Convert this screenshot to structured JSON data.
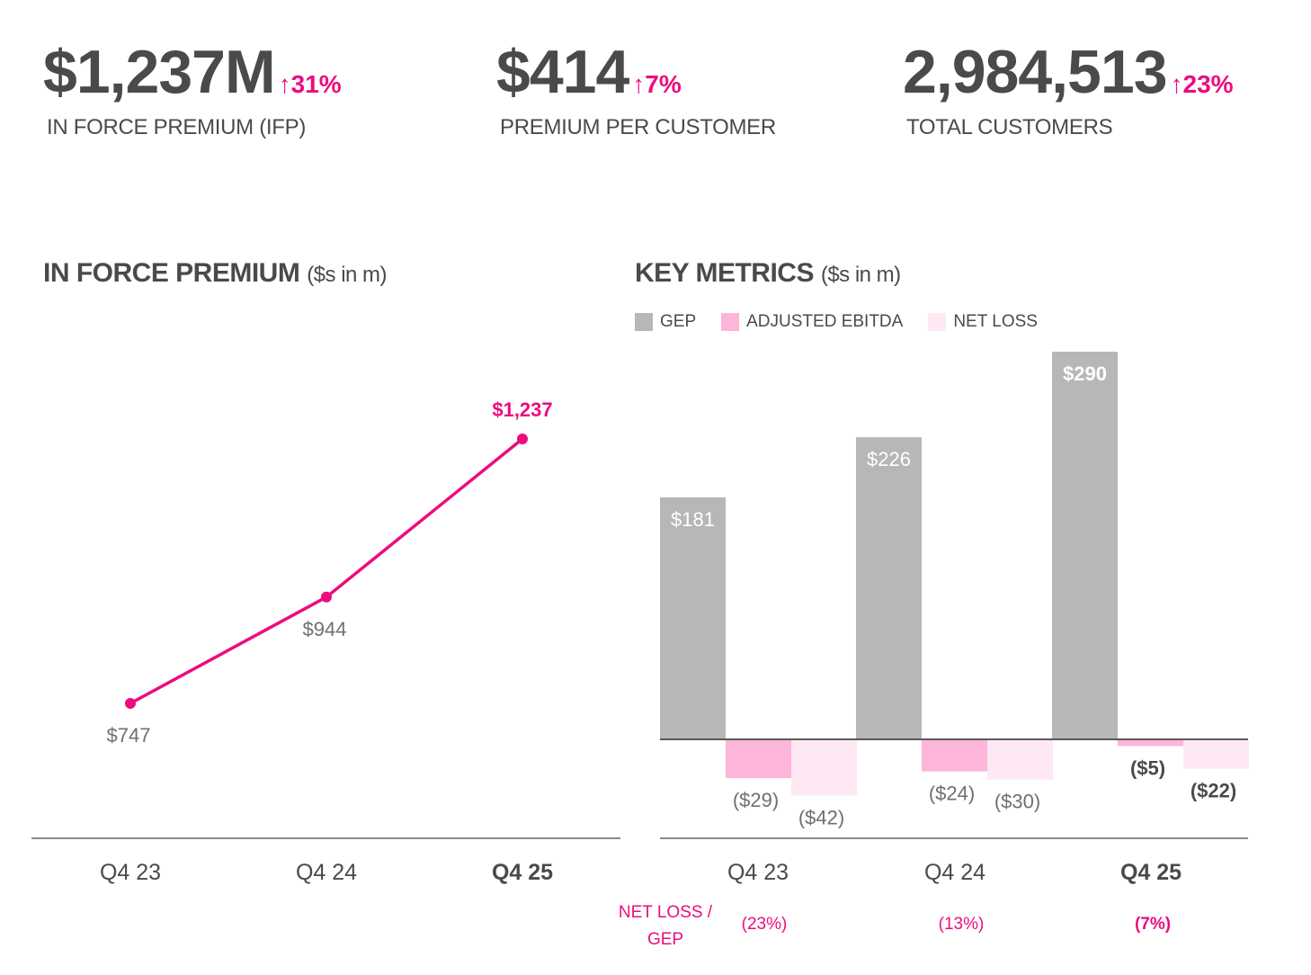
{
  "kpis": [
    {
      "value": "$1,237M",
      "change": "↑31%",
      "label": "IN FORCE PREMIUM (IFP)"
    },
    {
      "value": "$414",
      "change": "↑7%",
      "label": "PREMIUM PER CUSTOMER"
    },
    {
      "value": "2,984,513",
      "change": "↑23%",
      "label": "TOTAL CUSTOMERS"
    }
  ],
  "colors": {
    "accent": "#ec0c7f",
    "text": "#4a4a4a",
    "gep": "#b7b7b7",
    "adjusted_ebitda": "#fdb5d9",
    "net_loss": "#fde8f3",
    "axis": "#8a8a8a"
  },
  "chart_data": [
    {
      "type": "line",
      "title": "IN FORCE PREMIUM",
      "unit": "($s in m)",
      "categories": [
        "Q4 23",
        "Q4 24",
        "Q4 25"
      ],
      "values": [
        747,
        944,
        1237
      ],
      "data_labels": [
        "$747",
        "$944",
        "$1,237"
      ],
      "highlight_index": 2,
      "xlabel": "",
      "ylabel": "",
      "grid": false
    },
    {
      "type": "bar",
      "title": "KEY METRICS",
      "unit": "($s in m)",
      "categories": [
        "Q4 23",
        "Q4 24",
        "Q4 25"
      ],
      "legend": [
        "GEP",
        "ADJUSTED EBITDA",
        "NET LOSS"
      ],
      "legend_placement": "top-left",
      "series": [
        {
          "name": "GEP",
          "values": [
            181,
            226,
            290
          ],
          "labels": [
            "$181",
            "$226",
            "$290"
          ]
        },
        {
          "name": "ADJUSTED EBITDA",
          "values": [
            -29,
            -24,
            -5
          ],
          "labels": [
            "($29)",
            "($24)",
            "($5)"
          ]
        },
        {
          "name": "NET LOSS",
          "values": [
            -42,
            -30,
            -22
          ],
          "labels": [
            "($42)",
            "($30)",
            "($22)"
          ]
        }
      ],
      "highlight_index": 2,
      "footer_label": "NET LOSS / GEP",
      "footer_label_lines": [
        "NET LOSS /",
        "GEP"
      ],
      "footer_values": [
        "(23%)",
        "(13%)",
        "(7%)"
      ],
      "grid": false
    }
  ]
}
